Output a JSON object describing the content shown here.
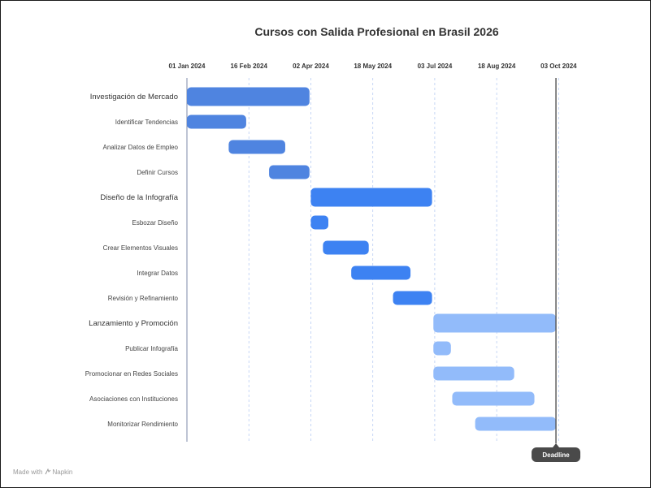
{
  "chart_data": {
    "type": "gantt",
    "title": "Cursos con Salida Profesional en Brasil 2026",
    "x_ticks": [
      "01 Jan 2024",
      "16 Feb 2024",
      "02 Apr 2024",
      "18 May 2024",
      "03 Jul 2024",
      "18 Aug 2024",
      "03 Oct 2024"
    ],
    "x_range": [
      "2024-01-01",
      "2024-10-07"
    ],
    "grid": "vertical dashed",
    "tasks": [
      {
        "name": "Investigación de Mercado",
        "level": "group",
        "start": "2024-01-01",
        "end": "2024-04-01",
        "color": "#4f84e0"
      },
      {
        "name": "Identificar Tendencias",
        "level": "task",
        "start": "2024-01-01",
        "end": "2024-02-14",
        "color": "#4f84e0"
      },
      {
        "name": "Analizar Datos de Empleo",
        "level": "task",
        "start": "2024-02-01",
        "end": "2024-03-14",
        "color": "#4f84e0"
      },
      {
        "name": "Definir Cursos",
        "level": "task",
        "start": "2024-03-02",
        "end": "2024-04-01",
        "color": "#4f84e0"
      },
      {
        "name": "Diseño de la Infografía",
        "level": "group",
        "start": "2024-04-02",
        "end": "2024-07-01",
        "color": "#3d82f2"
      },
      {
        "name": "Esbozar Diseño",
        "level": "task",
        "start": "2024-04-02",
        "end": "2024-04-15",
        "color": "#3d82f2"
      },
      {
        "name": "Crear Elementos Visuales",
        "level": "task",
        "start": "2024-04-11",
        "end": "2024-05-15",
        "color": "#3d82f2"
      },
      {
        "name": "Integrar Datos",
        "level": "task",
        "start": "2024-05-02",
        "end": "2024-06-15",
        "color": "#3d82f2"
      },
      {
        "name": "Revisión y Refinamiento",
        "level": "task",
        "start": "2024-06-02",
        "end": "2024-07-01",
        "color": "#3d82f2"
      },
      {
        "name": "Lanzamiento y Promoción",
        "level": "group",
        "start": "2024-07-02",
        "end": "2024-10-01",
        "color": "#92bbfa"
      },
      {
        "name": "Publicar Infografía",
        "level": "task",
        "start": "2024-07-02",
        "end": "2024-07-15",
        "color": "#92bbfa"
      },
      {
        "name": "Promocionar en Redes Sociales",
        "level": "task",
        "start": "2024-07-02",
        "end": "2024-08-31",
        "color": "#92bbfa"
      },
      {
        "name": "Asociaciones con Instituciones",
        "level": "task",
        "start": "2024-07-16",
        "end": "2024-09-15",
        "color": "#92bbfa"
      },
      {
        "name": "Monitorizar Rendimiento",
        "level": "task",
        "start": "2024-08-02",
        "end": "2024-10-01",
        "color": "#92bbfa"
      }
    ],
    "today_marker": "2024-01-01",
    "deadline": {
      "label": "Deadline",
      "date": "2024-10-01"
    }
  },
  "footer": {
    "made_with": "Made with",
    "brand": "Napkin",
    "brand_icon": "napkin-logo-icon"
  }
}
